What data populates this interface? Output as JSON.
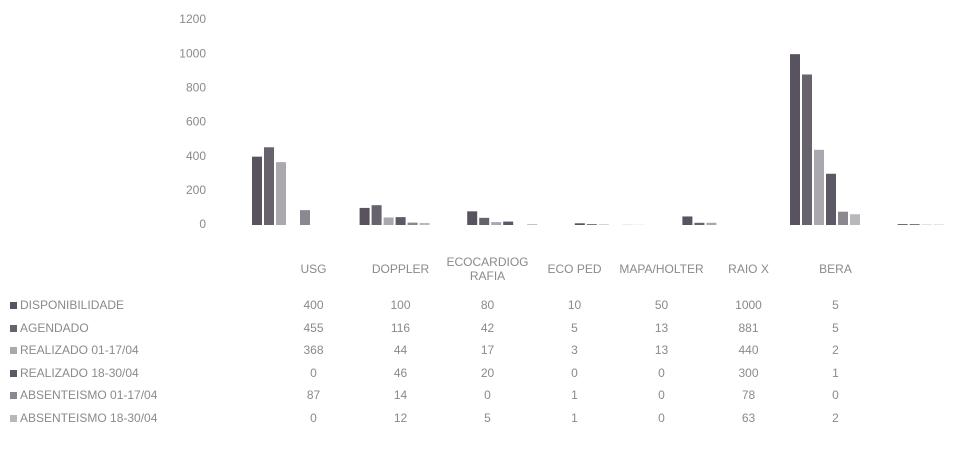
{
  "chart_data": {
    "type": "bar",
    "categories": [
      "USG",
      "DOPPLER",
      "ECOCARDIOGRAFIA",
      "ECO PED",
      "MAPA/HOLTER",
      "RAIO X",
      "BERA"
    ],
    "series": [
      {
        "name": "DISPONIBILIDADE",
        "color": "#58535f",
        "values": [
          400,
          100,
          80,
          10,
          50,
          1000,
          5
        ]
      },
      {
        "name": "AGENDADO",
        "color": "#67626c",
        "values": [
          455,
          116,
          42,
          5,
          13,
          881,
          5
        ]
      },
      {
        "name": "REALIZADO 01-17/04",
        "color": "#aaa7ae",
        "values": [
          368,
          44,
          17,
          3,
          13,
          440,
          2
        ]
      },
      {
        "name": "REALIZADO 18-30/04",
        "color": "#5d5866",
        "values": [
          0,
          46,
          20,
          0,
          0,
          300,
          1
        ]
      },
      {
        "name": "ABSENTEISMO 01-17/04",
        "color": "#8b8891",
        "values": [
          87,
          14,
          0,
          1,
          0,
          78,
          0
        ]
      },
      {
        "name": "ABSENTEISMO 18-30/04",
        "color": "#b9b7bc",
        "values": [
          0,
          12,
          5,
          1,
          0,
          63,
          2
        ]
      }
    ],
    "ylim": [
      0,
      1200
    ],
    "yticks": [
      0,
      200,
      400,
      600,
      800,
      1000,
      1200
    ],
    "grid": false,
    "data_table": true
  }
}
